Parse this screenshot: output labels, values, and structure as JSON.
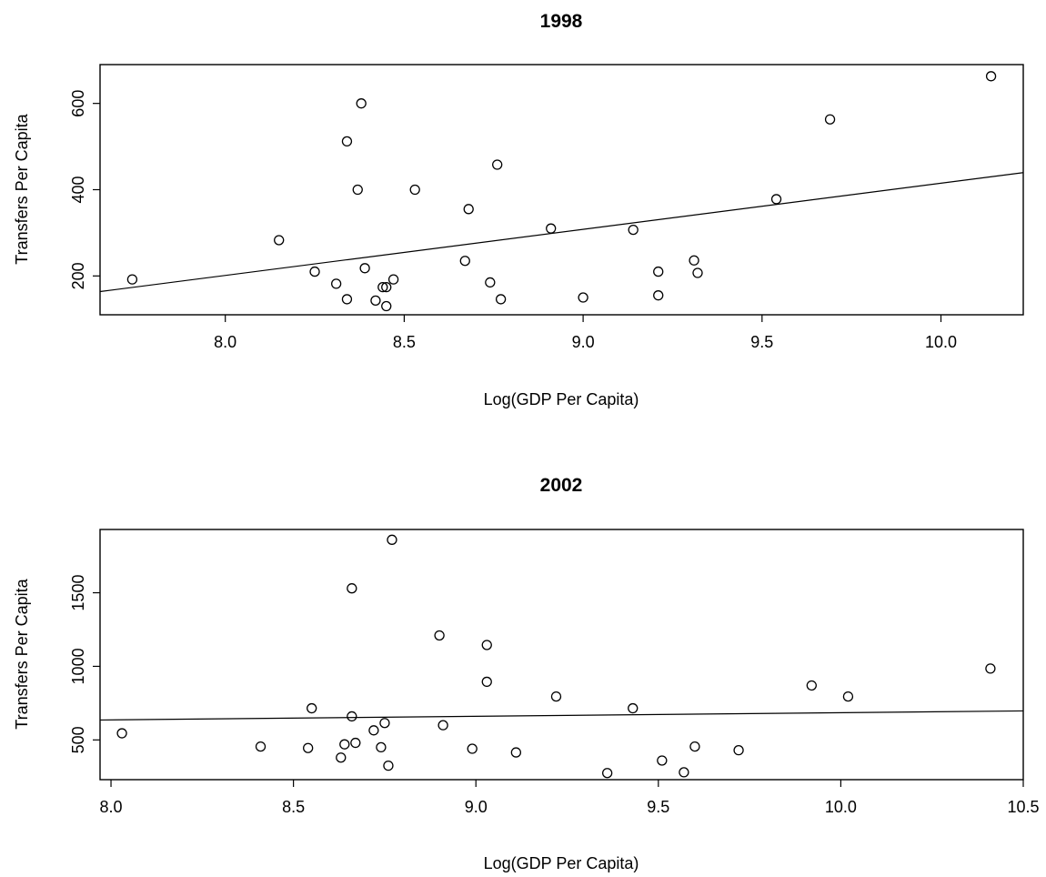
{
  "chart_data": [
    {
      "type": "scatter",
      "title": "1998",
      "xlabel": "Log(GDP Per Capita)",
      "ylabel": "Transfers Per Capita",
      "xlim": [
        7.65,
        10.23
      ],
      "ylim": [
        110,
        690
      ],
      "xticks": [
        8.0,
        8.5,
        9.0,
        9.5,
        10.0
      ],
      "xtick_labels": [
        "8.0",
        "8.5",
        "9.0",
        "9.5",
        "10.0"
      ],
      "yticks": [
        200,
        400,
        600
      ],
      "ytick_labels": [
        "200",
        "400",
        "600"
      ],
      "grid": false,
      "points": [
        [
          7.74,
          192
        ],
        [
          8.15,
          283
        ],
        [
          8.25,
          210
        ],
        [
          8.31,
          182
        ],
        [
          8.34,
          512
        ],
        [
          8.34,
          146
        ],
        [
          8.37,
          400
        ],
        [
          8.38,
          600
        ],
        [
          8.39,
          218
        ],
        [
          8.42,
          143
        ],
        [
          8.44,
          174
        ],
        [
          8.45,
          174
        ],
        [
          8.45,
          130
        ],
        [
          8.47,
          192
        ],
        [
          8.53,
          400
        ],
        [
          8.67,
          235
        ],
        [
          8.68,
          355
        ],
        [
          8.74,
          185
        ],
        [
          8.76,
          458
        ],
        [
          8.77,
          146
        ],
        [
          8.91,
          310
        ],
        [
          9.0,
          150
        ],
        [
          9.14,
          307
        ],
        [
          9.21,
          210
        ],
        [
          9.21,
          155
        ],
        [
          9.31,
          236
        ],
        [
          9.32,
          207
        ],
        [
          9.54,
          378
        ],
        [
          9.69,
          563
        ],
        [
          10.14,
          663
        ]
      ],
      "fit_line": {
        "intercept": -654,
        "slope": 106.9
      }
    },
    {
      "type": "scatter",
      "title": "2002",
      "xlabel": "Log(GDP Per Capita)",
      "ylabel": "Transfers Per Capita",
      "xlim": [
        7.97,
        10.5
      ],
      "ylim": [
        230,
        1930
      ],
      "xticks": [
        8.0,
        8.5,
        9.0,
        9.5,
        10.0,
        10.5
      ],
      "xtick_labels": [
        "8.0",
        "8.5",
        "9.0",
        "9.5",
        "10.0",
        "10.5"
      ],
      "yticks": [
        500,
        1000,
        1500
      ],
      "ytick_labels": [
        "500",
        "1000",
        "1500"
      ],
      "grid": false,
      "points": [
        [
          8.03,
          545
        ],
        [
          8.41,
          455
        ],
        [
          8.54,
          445
        ],
        [
          8.55,
          715
        ],
        [
          8.63,
          380
        ],
        [
          8.64,
          470
        ],
        [
          8.66,
          660
        ],
        [
          8.66,
          1530
        ],
        [
          8.67,
          480
        ],
        [
          8.72,
          565
        ],
        [
          8.74,
          450
        ],
        [
          8.75,
          615
        ],
        [
          8.76,
          325
        ],
        [
          8.77,
          1860
        ],
        [
          8.9,
          1210
        ],
        [
          8.91,
          600
        ],
        [
          8.99,
          440
        ],
        [
          9.03,
          895
        ],
        [
          9.03,
          1145
        ],
        [
          9.11,
          415
        ],
        [
          9.22,
          795
        ],
        [
          9.36,
          275
        ],
        [
          9.43,
          715
        ],
        [
          9.51,
          360
        ],
        [
          9.57,
          280
        ],
        [
          9.6,
          455
        ],
        [
          9.72,
          430
        ],
        [
          9.92,
          870
        ],
        [
          10.02,
          795
        ],
        [
          10.41,
          985
        ]
      ],
      "fit_line": {
        "intercept": 440,
        "slope": 24.5
      }
    }
  ]
}
